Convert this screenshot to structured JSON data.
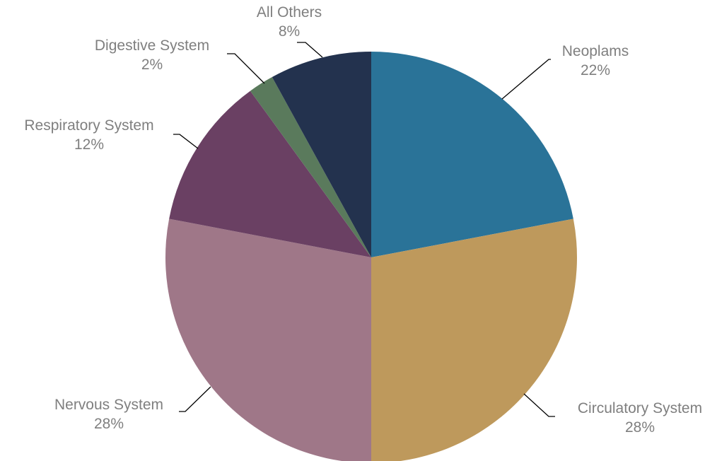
{
  "chart_data": {
    "type": "pie",
    "title": "",
    "slices": [
      {
        "label": "Neoplams",
        "percent_label": "22%",
        "value": 22,
        "color": "#2a7398"
      },
      {
        "label": "Circulatory System",
        "percent_label": "28%",
        "value": 28,
        "color": "#be995c"
      },
      {
        "label": "Nervous System",
        "percent_label": "28%",
        "value": 28,
        "color": "#9f7788"
      },
      {
        "label": "Respiratory System",
        "percent_label": "12%",
        "value": 12,
        "color": "#6a4063"
      },
      {
        "label": "Digestive System",
        "percent_label": "2%",
        "value": 2,
        "color": "#5a7a5c"
      },
      {
        "label": "All Others",
        "percent_label": "8%",
        "value": 8,
        "color": "#23324e"
      }
    ],
    "start": "12 o'clock",
    "direction": "clockwise",
    "legend": "none",
    "label_color": "#7f7f7f"
  }
}
